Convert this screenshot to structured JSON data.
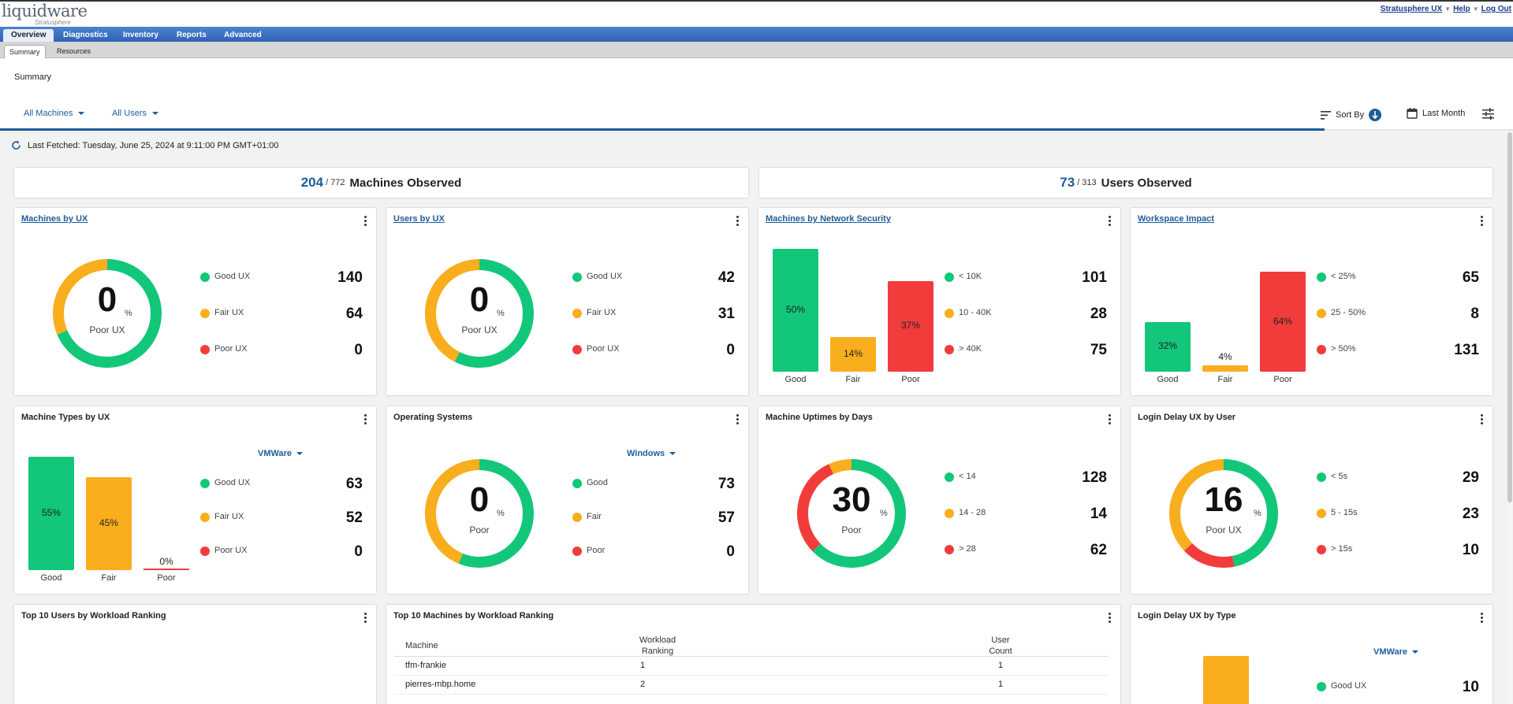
{
  "app": {
    "logo_main": "liquidware",
    "logo_sub": "Stratusphere",
    "top_links": [
      "Stratusphere UX",
      "Help",
      "Log Out"
    ]
  },
  "main_nav": [
    "Overview",
    "Diagnostics",
    "Inventory",
    "Reports",
    "Advanced"
  ],
  "sub_nav": [
    "Summary",
    "Resources"
  ],
  "page_title": "Summary",
  "filters": {
    "machines": "All Machines",
    "users": "All Users",
    "sort_by": "Sort By",
    "period": "Last Month"
  },
  "last_fetched": "Last Fetched: Tuesday, June 25, 2024 at 9:11:00 PM GMT+01:00",
  "observed": {
    "machines": {
      "count": "204",
      "total": "/ 772",
      "label": "Machines Observed"
    },
    "users": {
      "count": "73",
      "total": "/ 313",
      "label": "Users Observed"
    }
  },
  "colors": {
    "good": "#12c77a",
    "fair": "#f9ae1d",
    "poor": "#f23c3c",
    "accent": "#1d5c99"
  },
  "cards": {
    "machines_by_ux": {
      "title": "Machines by UX",
      "pct": "0",
      "pct_sign": "%",
      "sub": "Poor UX",
      "ring_fraction": {
        "good": 0.686,
        "fair": 0.314,
        "poor": 0
      },
      "legend": [
        {
          "label": "Good UX",
          "value": "140"
        },
        {
          "label": "Fair UX",
          "value": "64"
        },
        {
          "label": "Poor UX",
          "value": "0"
        }
      ]
    },
    "users_by_ux": {
      "title": "Users by UX",
      "pct": "0",
      "pct_sign": "%",
      "sub": "Poor UX",
      "ring_fraction": {
        "good": 0.575,
        "fair": 0.425,
        "poor": 0
      },
      "legend": [
        {
          "label": "Good UX",
          "value": "42"
        },
        {
          "label": "Fair UX",
          "value": "31"
        },
        {
          "label": "Poor UX",
          "value": "0"
        }
      ]
    },
    "network_security": {
      "title": "Machines by Network Security",
      "bars": [
        {
          "label": "Good",
          "pct_label": "50%",
          "pct": 50
        },
        {
          "label": "Fair",
          "pct_label": "14%",
          "pct": 14
        },
        {
          "label": "Poor",
          "pct_label": "37%",
          "pct": 37
        }
      ],
      "legend": [
        {
          "label": "< 10K",
          "value": "101"
        },
        {
          "label": "10 - 40K",
          "value": "28"
        },
        {
          "label": "> 40K",
          "value": "75"
        }
      ]
    },
    "workspace_impact": {
      "title": "Workspace Impact",
      "bars": [
        {
          "label": "Good",
          "pct_label": "32%",
          "pct": 32
        },
        {
          "label": "Fair",
          "pct_label": "4%",
          "pct": 4
        },
        {
          "label": "Poor",
          "pct_label": "64%",
          "pct": 64
        }
      ],
      "legend": [
        {
          "label": "< 25%",
          "value": "65"
        },
        {
          "label": "25 - 50%",
          "value": "8"
        },
        {
          "label": "> 50%",
          "value": "131"
        }
      ]
    },
    "machine_types": {
      "title": "Machine Types by UX",
      "selector": "VMWare",
      "bars": [
        {
          "label": "Good",
          "pct_label": "55%",
          "pct": 55
        },
        {
          "label": "Fair",
          "pct_label": "45%",
          "pct": 45
        },
        {
          "label": "Poor",
          "pct_label": "0%",
          "pct": 0
        }
      ],
      "legend": [
        {
          "label": "Good UX",
          "value": "63"
        },
        {
          "label": "Fair UX",
          "value": "52"
        },
        {
          "label": "Poor UX",
          "value": "0"
        }
      ]
    },
    "operating_systems": {
      "title": "Operating Systems",
      "selector": "Windows",
      "pct": "0",
      "pct_sign": "%",
      "sub": "Poor",
      "ring_fraction": {
        "good": 0.562,
        "fair": 0.438,
        "poor": 0
      },
      "legend": [
        {
          "label": "Good",
          "value": "73"
        },
        {
          "label": "Fair",
          "value": "57"
        },
        {
          "label": "Poor",
          "value": "0"
        }
      ]
    },
    "uptimes": {
      "title": "Machine Uptimes by Days",
      "pct": "30",
      "pct_sign": "%",
      "sub": "Poor",
      "ring_fraction": {
        "good": 0.627,
        "fair": 0.069,
        "poor": 0.304
      },
      "legend": [
        {
          "label": "< 14",
          "value": "128"
        },
        {
          "label": "14 - 28",
          "value": "14"
        },
        {
          "label": "> 28",
          "value": "62"
        }
      ]
    },
    "login_delay_user": {
      "title": "Login Delay UX by User",
      "pct": "16",
      "pct_sign": "%",
      "sub": "Poor UX",
      "ring_fraction": {
        "good": 0.468,
        "fair": 0.371,
        "poor": 0.161
      },
      "legend": [
        {
          "label": "< 5s",
          "value": "29"
        },
        {
          "label": "5 - 15s",
          "value": "23"
        },
        {
          "label": "> 15s",
          "value": "10"
        }
      ]
    },
    "top_users": {
      "title": "Top 10 Users by Workload Ranking"
    },
    "top_machines": {
      "title": "Top 10 Machines by Workload Ranking",
      "columns": [
        "Machine",
        "Workload Ranking",
        "User Count"
      ],
      "rows": [
        {
          "machine": "tfm-frankie",
          "rank": "1",
          "users": "1"
        },
        {
          "machine": "pierres-mbp.home",
          "rank": "2",
          "users": "1"
        }
      ]
    },
    "login_delay_type": {
      "title": "Login Delay UX by Type",
      "selector": "VMWare",
      "legend": [
        {
          "label": "Good UX",
          "value": "10"
        }
      ]
    }
  }
}
